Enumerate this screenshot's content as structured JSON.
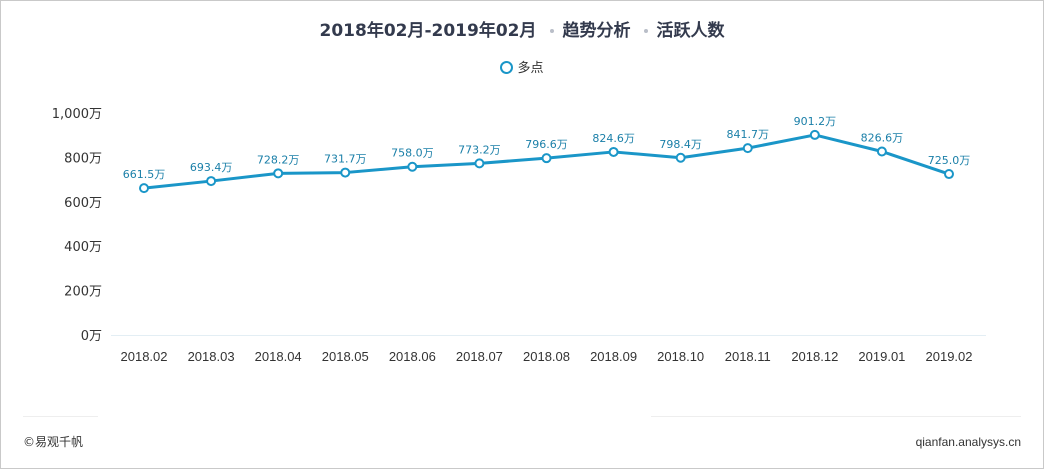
{
  "title": {
    "period": "2018年02月-2019年02月",
    "category": "趋势分析",
    "metric": "活跃人数"
  },
  "footer": {
    "left": "©易观千帆",
    "right": "qianfan.analysys.cn"
  },
  "colors": {
    "series": "#1a96c8",
    "label": "#1a7fa8",
    "axis_text": "#333333",
    "baseline": "#e3eef4"
  },
  "chart_data": {
    "type": "line",
    "title": "2018年02月-2019年02月 趋势分析 活跃人数",
    "categories": [
      "2018.02",
      "2018.03",
      "2018.04",
      "2018.05",
      "2018.06",
      "2018.07",
      "2018.08",
      "2018.09",
      "2018.10",
      "2018.11",
      "2018.12",
      "2019.01",
      "2019.02"
    ],
    "series": [
      {
        "name": "多点",
        "values": [
          661.5,
          693.4,
          728.2,
          731.7,
          758.0,
          773.2,
          796.6,
          824.6,
          798.4,
          841.7,
          901.2,
          826.6,
          725.0
        ],
        "labels": [
          "661.5万",
          "693.4万",
          "728.2万",
          "731.7万",
          "758.0万",
          "773.2万",
          "796.6万",
          "824.6万",
          "798.4万",
          "841.7万",
          "901.2万",
          "826.6万",
          "725.0万"
        ]
      }
    ],
    "y_ticks": [
      0,
      200,
      400,
      600,
      800,
      1000
    ],
    "y_tick_labels": [
      "0万",
      "200万",
      "400万",
      "600万",
      "800万",
      "1,000万"
    ],
    "ylim": [
      0,
      1000
    ],
    "unit": "万",
    "grid": false,
    "legend_position": "top-center"
  }
}
